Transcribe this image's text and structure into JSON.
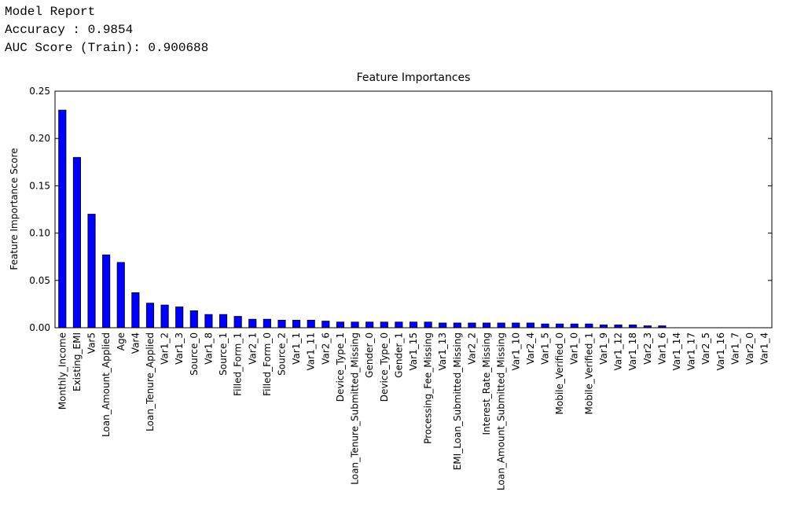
{
  "report": {
    "lines": [
      "Model Report",
      "Accuracy : 0.9854",
      "AUC Score (Train): 0.900688"
    ]
  },
  "chart_data": {
    "type": "bar",
    "title": "Feature Importances",
    "y_label": "Feature Importance Score",
    "color": "#0000ff",
    "grid": false,
    "categories": [
      "Monthly_Income",
      "Existing_EMI",
      "Var5",
      "Loan_Amount_Applied",
      "Age",
      "Var4",
      "Loan_Tenure_Applied",
      "Var1_2",
      "Var1_3",
      "Source_0",
      "Var1_8",
      "Source_1",
      "Filled_Form_1",
      "Var2_1",
      "Filled_Form_0",
      "Source_2",
      "Var1_1",
      "Var1_11",
      "Var2_6",
      "Device_Type_1",
      "Loan_Tenure_Submitted_Missing",
      "Gender_0",
      "Device_Type_0",
      "Gender_1",
      "Var1_15",
      "Processing_Fee_Missing",
      "Var1_13",
      "EMI_Loan_Submitted_Missing",
      "Var2_2",
      "Interest_Rate_Missing",
      "Loan_Amount_Submitted_Missing",
      "Var1_10",
      "Var2_4",
      "Var1_5",
      "Mobile_Verified_0",
      "Var1_0",
      "Mobile_Verified_1",
      "Var1_9",
      "Var1_12",
      "Var1_18",
      "Var2_3",
      "Var1_6",
      "Var1_14",
      "Var1_17",
      "Var2_5",
      "Var1_16",
      "Var1_7",
      "Var2_0",
      "Var1_4"
    ],
    "values": [
      0.23,
      0.18,
      0.12,
      0.077,
      0.069,
      0.037,
      0.026,
      0.024,
      0.022,
      0.018,
      0.014,
      0.014,
      0.012,
      0.009,
      0.009,
      0.008,
      0.008,
      0.008,
      0.007,
      0.006,
      0.006,
      0.006,
      0.006,
      0.006,
      0.006,
      0.006,
      0.005,
      0.005,
      0.005,
      0.005,
      0.005,
      0.005,
      0.005,
      0.004,
      0.004,
      0.004,
      0.004,
      0.003,
      0.003,
      0.003,
      0.002,
      0.002,
      0,
      0,
      0,
      0,
      0,
      0,
      0
    ],
    "ylim": [
      0,
      0.25
    ],
    "yticks": [
      {
        "value": 0,
        "label": "0.00"
      },
      0.05,
      {
        "value": 0.1,
        "label": "0.10"
      },
      0.15,
      {
        "value": 0.2,
        "label": "0.20"
      },
      0.25
    ]
  }
}
